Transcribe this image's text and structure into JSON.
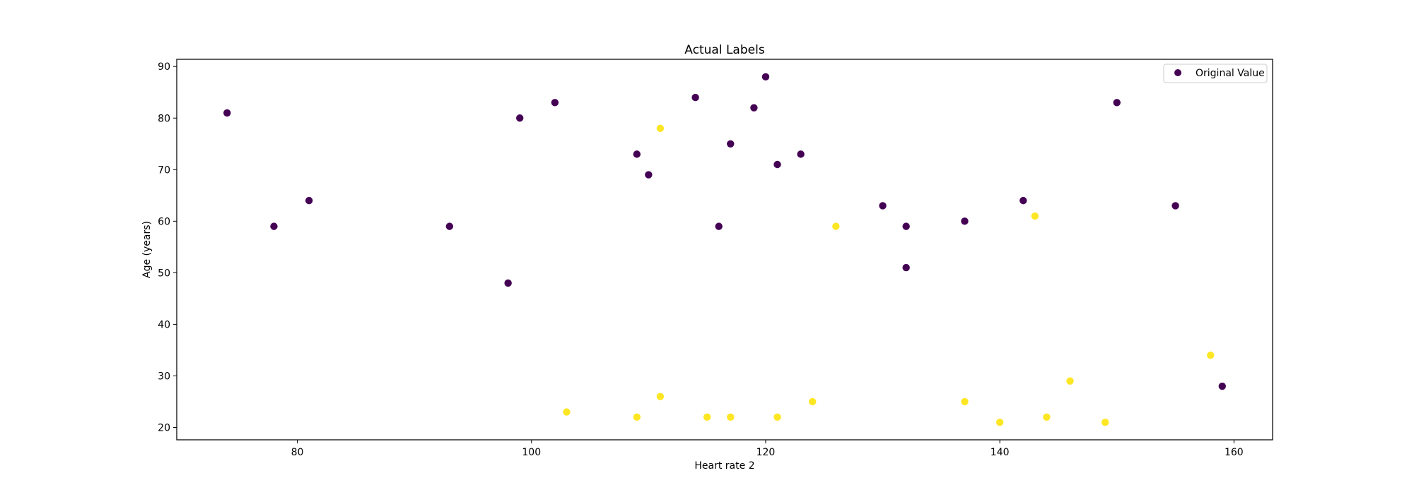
{
  "chart_data": {
    "type": "scatter",
    "title": "Actual Labels",
    "xlabel": "Heart rate 2",
    "ylabel": "Age (years)",
    "xlim": [
      69.7,
      163.3
    ],
    "ylim": [
      17.6,
      91.4
    ],
    "xticks": [
      80,
      100,
      120,
      140,
      160
    ],
    "yticks": [
      20,
      30,
      40,
      50,
      60,
      70,
      80,
      90
    ],
    "grid": false,
    "legend": {
      "position": "top-right",
      "label": "Original Value",
      "color": "#440154"
    },
    "colors": {
      "class_0": "#440154",
      "class_1": "#fde725"
    },
    "points": [
      {
        "x": 74,
        "y": 81,
        "c": 0
      },
      {
        "x": 78,
        "y": 59,
        "c": 0
      },
      {
        "x": 81,
        "y": 64,
        "c": 0
      },
      {
        "x": 93,
        "y": 59,
        "c": 0
      },
      {
        "x": 98,
        "y": 48,
        "c": 0
      },
      {
        "x": 99,
        "y": 80,
        "c": 0
      },
      {
        "x": 102,
        "y": 83,
        "c": 0
      },
      {
        "x": 103,
        "y": 23,
        "c": 1
      },
      {
        "x": 109,
        "y": 73,
        "c": 0
      },
      {
        "x": 109,
        "y": 22,
        "c": 1
      },
      {
        "x": 110,
        "y": 69,
        "c": 0
      },
      {
        "x": 111,
        "y": 78,
        "c": 1
      },
      {
        "x": 111,
        "y": 26,
        "c": 1
      },
      {
        "x": 114,
        "y": 84,
        "c": 0
      },
      {
        "x": 115,
        "y": 22,
        "c": 1
      },
      {
        "x": 116,
        "y": 59,
        "c": 0
      },
      {
        "x": 117,
        "y": 75,
        "c": 0
      },
      {
        "x": 117,
        "y": 22,
        "c": 1
      },
      {
        "x": 119,
        "y": 82,
        "c": 0
      },
      {
        "x": 120,
        "y": 88,
        "c": 0
      },
      {
        "x": 121,
        "y": 71,
        "c": 0
      },
      {
        "x": 121,
        "y": 22,
        "c": 1
      },
      {
        "x": 123,
        "y": 73,
        "c": 0
      },
      {
        "x": 124,
        "y": 25,
        "c": 1
      },
      {
        "x": 126,
        "y": 59,
        "c": 1
      },
      {
        "x": 130,
        "y": 63,
        "c": 0
      },
      {
        "x": 132,
        "y": 59,
        "c": 0
      },
      {
        "x": 132,
        "y": 51,
        "c": 0
      },
      {
        "x": 137,
        "y": 60,
        "c": 0
      },
      {
        "x": 137,
        "y": 25,
        "c": 1
      },
      {
        "x": 140,
        "y": 21,
        "c": 1
      },
      {
        "x": 142,
        "y": 64,
        "c": 0
      },
      {
        "x": 143,
        "y": 61,
        "c": 1
      },
      {
        "x": 144,
        "y": 22,
        "c": 1
      },
      {
        "x": 146,
        "y": 29,
        "c": 1
      },
      {
        "x": 149,
        "y": 21,
        "c": 1
      },
      {
        "x": 150,
        "y": 83,
        "c": 0
      },
      {
        "x": 155,
        "y": 63,
        "c": 0
      },
      {
        "x": 158,
        "y": 34,
        "c": 1
      },
      {
        "x": 159,
        "y": 28,
        "c": 0
      }
    ]
  }
}
